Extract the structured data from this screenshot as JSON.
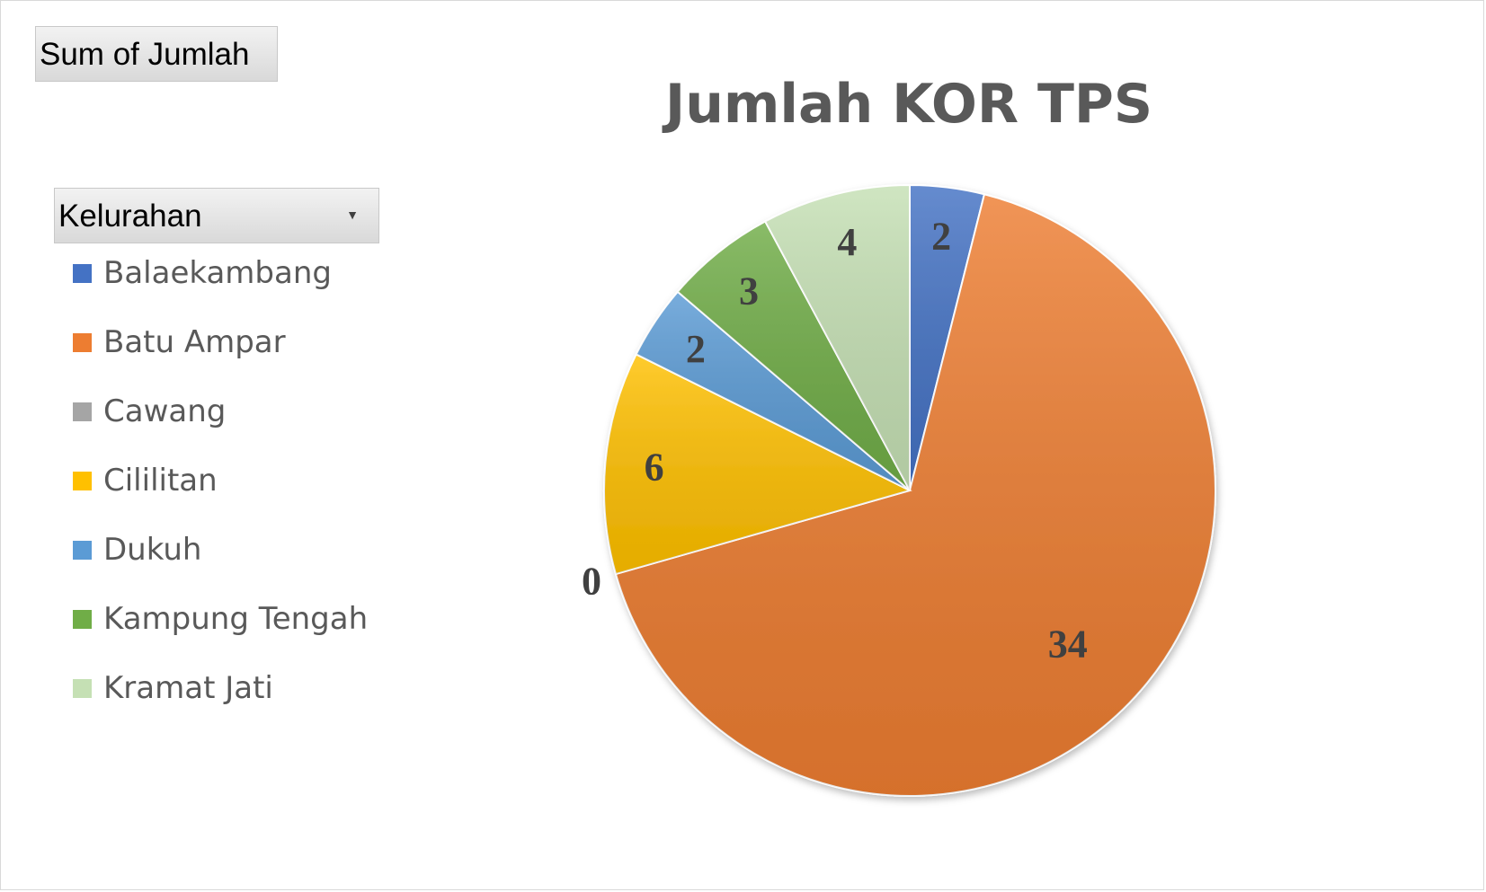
{
  "pivot": {
    "value_field": "Sum of Jumlah",
    "axis_field": "Kelurahan",
    "axis_dropdown_icon": "dropdown-arrow-icon"
  },
  "chart_data": {
    "type": "pie",
    "title": "Jumlah KOR TPS",
    "categories": [
      "Balaekambang",
      "Batu Ampar",
      "Cawang",
      "Cililitan",
      "Dukuh",
      "Kampung Tengah",
      "Kramat Jati"
    ],
    "values": [
      2,
      34,
      0,
      6,
      2,
      3,
      4
    ],
    "colors": [
      "#4472c4",
      "#ed7d31",
      "#a5a5a5",
      "#ffc000",
      "#5b9bd5",
      "#70ad47",
      "#c5e0b4"
    ],
    "data_labels": [
      "2",
      "34",
      "0",
      "6",
      "2",
      "3",
      "4"
    ],
    "legend_position": "left",
    "start_angle_deg": 0,
    "direction": "clockwise"
  }
}
